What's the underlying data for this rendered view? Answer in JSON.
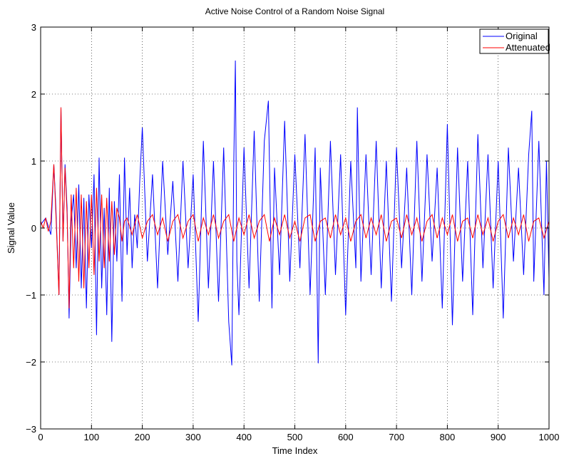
{
  "chart_data": {
    "type": "line",
    "title": "Active Noise Control of a Random Noise Signal",
    "xlabel": "Time Index",
    "ylabel": "Signal Value",
    "xlim": [
      0,
      1000
    ],
    "ylim": [
      -3,
      3
    ],
    "grid": true,
    "legend_position": "top-right",
    "x_ticks": [
      0,
      100,
      200,
      300,
      400,
      500,
      600,
      700,
      800,
      900,
      1000
    ],
    "y_ticks": [
      -3,
      -2,
      -1,
      0,
      1,
      2,
      3
    ],
    "x_tick_labels": [
      "0",
      "100",
      "200",
      "300",
      "400",
      "500",
      "600",
      "700",
      "800",
      "900",
      "1000"
    ],
    "y_tick_labels": [
      "−3",
      "−2",
      "−1",
      "0",
      "1",
      "2",
      "3"
    ],
    "series": [
      {
        "name": "Original",
        "color": "#0000ff",
        "x": [
          0,
          10,
          20,
          26,
          30,
          36,
          40,
          44,
          48,
          52,
          56,
          60,
          65,
          70,
          75,
          80,
          85,
          90,
          95,
          100,
          105,
          110,
          115,
          120,
          125,
          130,
          135,
          140,
          145,
          150,
          155,
          160,
          165,
          170,
          175,
          180,
          185,
          190,
          195,
          200,
          210,
          220,
          230,
          240,
          250,
          260,
          270,
          280,
          290,
          300,
          310,
          320,
          330,
          340,
          350,
          360,
          370,
          376,
          380,
          383,
          386,
          390,
          400,
          410,
          420,
          430,
          440,
          448,
          455,
          460,
          470,
          480,
          490,
          500,
          510,
          520,
          530,
          540,
          546,
          550,
          560,
          570,
          580,
          590,
          600,
          610,
          620,
          623,
          630,
          640,
          650,
          660,
          670,
          680,
          690,
          700,
          710,
          720,
          730,
          740,
          750,
          760,
          770,
          780,
          790,
          800,
          810,
          820,
          830,
          840,
          850,
          860,
          870,
          880,
          890,
          900,
          910,
          920,
          930,
          940,
          950,
          960,
          966,
          970,
          980,
          990,
          995,
          1000
        ],
        "values": [
          0.05,
          0.15,
          -0.1,
          0.95,
          0.3,
          -1.0,
          1.8,
          -0.2,
          0.95,
          0.3,
          -1.35,
          0.1,
          0.5,
          -0.6,
          0.65,
          -0.9,
          0.45,
          -1.2,
          0.5,
          -0.3,
          0.8,
          -1.6,
          1.05,
          -0.9,
          0.3,
          -1.3,
          0.6,
          -1.7,
          0.4,
          -0.5,
          0.8,
          -1.1,
          1.05,
          -0.4,
          0.6,
          -0.6,
          0.2,
          -0.3,
          0.7,
          1.5,
          -0.5,
          0.8,
          -0.9,
          1.0,
          -0.4,
          0.7,
          -0.8,
          1.0,
          -0.6,
          0.8,
          -1.4,
          1.3,
          -0.9,
          1.0,
          -1.1,
          1.2,
          -1.4,
          -2.05,
          1.0,
          2.5,
          -0.5,
          -1.3,
          1.2,
          -0.9,
          1.45,
          -1.1,
          1.3,
          1.9,
          -1.2,
          0.9,
          -0.7,
          1.6,
          -0.8,
          1.1,
          -0.6,
          1.4,
          -1.0,
          1.2,
          -2.02,
          0.9,
          -1.0,
          1.3,
          -0.7,
          1.1,
          -1.3,
          1.0,
          -0.6,
          1.8,
          -0.8,
          1.1,
          -0.7,
          1.3,
          -0.9,
          1.0,
          -1.1,
          1.2,
          -0.6,
          0.9,
          -1.0,
          1.3,
          -0.8,
          1.1,
          -0.5,
          0.9,
          -1.2,
          1.55,
          -1.45,
          1.2,
          -0.8,
          1.0,
          -1.3,
          1.4,
          -0.6,
          1.1,
          -0.9,
          1.0,
          -1.35,
          1.2,
          -0.5,
          0.9,
          -0.7,
          1.1,
          1.75,
          -0.8,
          1.3,
          -1.0,
          1.0,
          -0.75
        ]
      },
      {
        "name": "Attenuated",
        "color": "#ff0000",
        "x": [
          0,
          5,
          10,
          15,
          20,
          26,
          30,
          36,
          40,
          44,
          48,
          52,
          56,
          60,
          65,
          70,
          75,
          80,
          85,
          90,
          95,
          100,
          105,
          110,
          115,
          120,
          125,
          130,
          135,
          140,
          145,
          150,
          155,
          160,
          165,
          170,
          180,
          190,
          200,
          210,
          220,
          230,
          240,
          250,
          260,
          270,
          280,
          290,
          300,
          310,
          320,
          330,
          340,
          350,
          360,
          370,
          380,
          390,
          400,
          410,
          420,
          430,
          440,
          450,
          460,
          470,
          480,
          490,
          500,
          510,
          520,
          530,
          540,
          550,
          560,
          570,
          580,
          590,
          600,
          610,
          620,
          630,
          640,
          650,
          660,
          670,
          680,
          690,
          700,
          710,
          720,
          730,
          740,
          750,
          760,
          770,
          780,
          790,
          800,
          810,
          820,
          830,
          840,
          850,
          860,
          870,
          880,
          890,
          900,
          910,
          920,
          930,
          940,
          950,
          960,
          970,
          980,
          990,
          1000
        ],
        "values": [
          0.1,
          0.0,
          0.15,
          -0.05,
          0.1,
          0.95,
          0.2,
          -1.0,
          1.8,
          -0.2,
          0.9,
          0.2,
          -1.2,
          0.5,
          -0.6,
          0.6,
          -0.8,
          0.5,
          -0.9,
          0.4,
          -0.6,
          0.5,
          -0.7,
          0.6,
          -0.5,
          0.5,
          -0.6,
          0.45,
          -0.5,
          0.4,
          -0.4,
          0.3,
          0.15,
          -0.2,
          0.1,
          0.15,
          -0.1,
          0.2,
          -0.15,
          0.1,
          0.2,
          -0.1,
          0.15,
          -0.2,
          0.1,
          0.2,
          -0.15,
          0.1,
          0.2,
          -0.2,
          0.15,
          -0.1,
          0.2,
          -0.15,
          0.1,
          0.2,
          -0.2,
          0.15,
          -0.1,
          0.2,
          -0.15,
          0.1,
          0.2,
          -0.2,
          0.15,
          -0.1,
          0.2,
          -0.15,
          0.1,
          -0.2,
          0.15,
          0.2,
          -0.2,
          0.1,
          0.15,
          -0.15,
          0.2,
          -0.1,
          0.15,
          -0.2,
          0.1,
          0.2,
          -0.15,
          0.15,
          -0.1,
          0.2,
          -0.2,
          0.1,
          0.15,
          -0.15,
          0.2,
          -0.1,
          0.15,
          -0.2,
          0.1,
          0.2,
          -0.15,
          0.15,
          -0.1,
          0.2,
          -0.2,
          0.1,
          0.15,
          -0.15,
          0.2,
          -0.1,
          0.15,
          -0.2,
          0.1,
          0.2,
          -0.15,
          0.15,
          -0.1,
          0.2,
          -0.2,
          0.1,
          0.15,
          -0.15,
          0.1
        ]
      }
    ]
  }
}
